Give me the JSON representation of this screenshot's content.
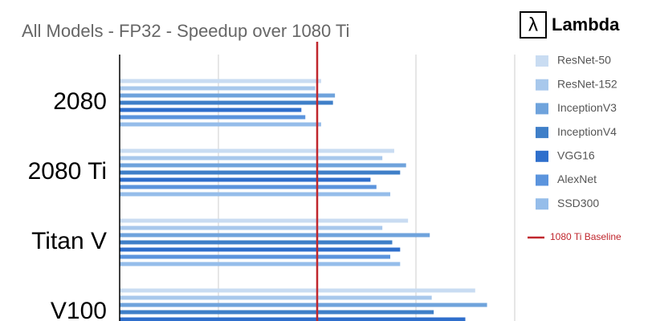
{
  "chart_data": {
    "type": "bar",
    "orientation": "horizontal",
    "title": "All Models - FP32 - Speedup over 1080 Ti",
    "logo": {
      "symbol": "λ",
      "text": "Lambda"
    },
    "categories": [
      "2080",
      "2080 Ti",
      "Titan V",
      "V100"
    ],
    "series": [
      {
        "name": "ResNet-50",
        "color": "#c9dcf2",
        "values": [
          1.02,
          1.39,
          1.46,
          1.8
        ]
      },
      {
        "name": "ResNet-152",
        "color": "#a8c8ec",
        "values": [
          0.99,
          1.33,
          1.33,
          1.58
        ]
      },
      {
        "name": "InceptionV3",
        "color": "#6fa3dc",
        "values": [
          1.09,
          1.45,
          1.57,
          1.86
        ]
      },
      {
        "name": "InceptionV4",
        "color": "#3f7fc8",
        "values": [
          1.08,
          1.42,
          1.38,
          1.59
        ]
      },
      {
        "name": "VGG16",
        "color": "#2f6fcc",
        "values": [
          0.92,
          1.27,
          1.42,
          1.75
        ]
      },
      {
        "name": "AlexNet",
        "color": "#5b94dd",
        "values": [
          0.94,
          1.3,
          1.37,
          null
        ]
      },
      {
        "name": "SSD300",
        "color": "#95bdea",
        "values": [
          1.02,
          1.37,
          1.42,
          null
        ]
      }
    ],
    "baseline": {
      "label": "1080 Ti Baseline",
      "value": 1,
      "color": "#c0262d"
    },
    "xlim": [
      0,
      2
    ],
    "xticks": [
      0,
      0.5,
      1,
      1.5,
      2
    ],
    "grid": true
  }
}
